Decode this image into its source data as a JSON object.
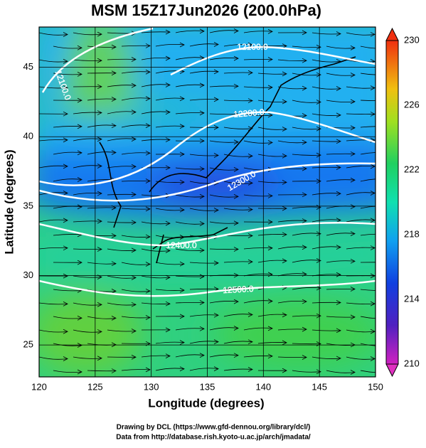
{
  "title": "MSM 15Z17Jun2026 (200.0hPa)",
  "map": {
    "xlabel": "Longitude (degrees)",
    "ylabel": "Latitude  (degrees)",
    "xlim": [
      120,
      150
    ],
    "ylim": [
      22.7,
      47.9
    ],
    "xticks": [
      120,
      125,
      130,
      135,
      140,
      145,
      150
    ],
    "yticks": [
      25,
      30,
      35,
      40,
      45
    ],
    "grid": true
  },
  "colorbar": {
    "lim": [
      210,
      230
    ],
    "ticks": [
      210,
      214,
      218,
      222,
      226,
      230
    ]
  },
  "contour_labels": [
    {
      "value": 12100,
      "label": "12100.0"
    },
    {
      "value": 12100,
      "label": "12100.0"
    },
    {
      "value": 12200,
      "label": "12200.0"
    },
    {
      "value": 12300,
      "label": "12300.0"
    },
    {
      "value": 12400,
      "label": "12400.0"
    },
    {
      "value": 12500,
      "label": "12500.0"
    }
  ],
  "footer": [
    "Drawing by DCL (https://www.gfd-dennou.org/library/dcl/)",
    "Data from http://database.rish.kyoto-u.ac.jp/arch/jmadata/"
  ]
}
